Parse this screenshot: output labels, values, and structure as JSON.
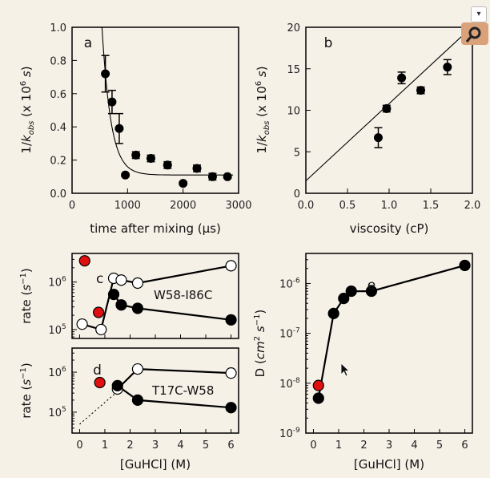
{
  "chart_data": [
    {
      "panel": "a",
      "type": "scatter",
      "xlabel": "time after mixing (μs)",
      "ylabel": "1/k_obs (x 10^6 s)",
      "xlim": [
        0,
        3000
      ],
      "ylim": [
        0,
        1.0
      ],
      "xticks": [
        "0",
        "1000",
        "2000",
        "3000"
      ],
      "yticks": [
        "0.0",
        "0.2",
        "0.4",
        "0.6",
        "0.8",
        "1.0"
      ],
      "points": [
        {
          "x": 600,
          "y": 0.72,
          "err": 0.11
        },
        {
          "x": 720,
          "y": 0.55,
          "err": 0.07
        },
        {
          "x": 850,
          "y": 0.39,
          "err": 0.09
        },
        {
          "x": 960,
          "y": 0.11,
          "err": 0.01
        },
        {
          "x": 1150,
          "y": 0.23,
          "err": 0.02
        },
        {
          "x": 1420,
          "y": 0.21,
          "err": 0.02
        },
        {
          "x": 1720,
          "y": 0.17,
          "err": 0.02
        },
        {
          "x": 2000,
          "y": 0.06,
          "err": 0.01
        },
        {
          "x": 2250,
          "y": 0.15,
          "err": 0.02
        },
        {
          "x": 2530,
          "y": 0.1,
          "err": 0.02
        },
        {
          "x": 2800,
          "y": 0.1,
          "err": 0.01
        }
      ],
      "fit": {
        "type": "exponential",
        "plateau": 0.11,
        "amplitude": 0.61,
        "x0": 600,
        "tau": 160
      }
    },
    {
      "panel": "b",
      "type": "scatter",
      "xlabel": "viscosity (cP)",
      "ylabel": "1/k_obs (x 10^6 s)",
      "xlim": [
        0,
        2.0
      ],
      "ylim": [
        0,
        20
      ],
      "xticks": [
        "0.0",
        "0.5",
        "1.0",
        "1.5",
        "2.0"
      ],
      "yticks": [
        "0",
        "5",
        "10",
        "15",
        "20"
      ],
      "points": [
        {
          "x": 0.87,
          "y": 6.7,
          "err": 1.2
        },
        {
          "x": 0.97,
          "y": 10.2,
          "err": 0.4
        },
        {
          "x": 1.15,
          "y": 13.9,
          "err": 0.7
        },
        {
          "x": 1.38,
          "y": 12.4,
          "err": 0.4
        },
        {
          "x": 1.7,
          "y": 15.2,
          "err": 0.9
        }
      ],
      "fit": {
        "type": "line",
        "intercept": 1.5,
        "slope": 9.3
      }
    },
    {
      "panel": "c",
      "type": "line",
      "label": "W58-I86C",
      "ylabel": "rate (s^-1)",
      "xlim": [
        -0.3,
        6.3
      ],
      "ylim": [
        65000.0,
        4000000.0
      ],
      "yscale": "log",
      "yticks": [
        "10^5",
        "10^6"
      ],
      "series": [
        {
          "style": "open",
          "x": [
            0.1,
            0.85,
            1.35,
            1.65,
            2.3,
            6.0
          ],
          "y": [
            130000.0,
            100000.0,
            1200000.0,
            1100000.0,
            950000.0,
            2200000.0
          ]
        },
        {
          "style": "filled",
          "x": [
            1.35,
            1.65,
            2.3,
            6.0
          ],
          "y": [
            550000.0,
            330000.0,
            280000.0,
            160000.0
          ]
        },
        {
          "style": "red",
          "x": [
            0.2,
            0.75
          ],
          "y": [
            2800000.0,
            230000.0
          ]
        }
      ]
    },
    {
      "panel": "d",
      "type": "line",
      "label": "T17C-W58",
      "ylabel": "rate (s^-1)",
      "xlabel": "[GuHCl] (M)",
      "xlim": [
        -0.3,
        6.3
      ],
      "ylim": [
        30000.0,
        4000000.0
      ],
      "yscale": "log",
      "xticks": [
        "0",
        "1",
        "2",
        "3",
        "4",
        "5",
        "6"
      ],
      "yticks": [
        "10^5",
        "10^6"
      ],
      "series": [
        {
          "style": "open",
          "x": [
            1.5,
            2.3,
            6.0
          ],
          "y": [
            380000.0,
            1200000.0,
            950000.0
          ]
        },
        {
          "style": "filled",
          "x": [
            1.5,
            2.3,
            6.0
          ],
          "y": [
            460000.0,
            200000.0,
            130000.0
          ]
        },
        {
          "style": "red",
          "x": [
            0.8
          ],
          "y": [
            550000.0
          ]
        },
        {
          "style": "dotted",
          "x": [
            0.0,
            1.4
          ],
          "y": [
            50000.0,
            290000.0
          ]
        }
      ]
    },
    {
      "panel": "e",
      "type": "line",
      "xlabel": "[GuHCl] (M)",
      "ylabel": "D (cm^2 s^-1)",
      "xlim": [
        -0.3,
        6.3
      ],
      "ylim": [
        1e-09,
        4e-06
      ],
      "yscale": "log",
      "xticks": [
        "0",
        "1",
        "2",
        "3",
        "4",
        "5",
        "6"
      ],
      "yticks": [
        "10^-9",
        "10^-8",
        "10^-7",
        "10^-6"
      ],
      "series": [
        {
          "style": "filled",
          "x": [
            0.2,
            0.8,
            1.2,
            1.5,
            2.3,
            6.0
          ],
          "y": [
            5e-09,
            2.5e-07,
            5e-07,
            7e-07,
            7e-07,
            2.3e-06
          ]
        },
        {
          "style": "red",
          "x": [
            0.2
          ],
          "y": [
            9e-09
          ]
        }
      ]
    }
  ]
}
